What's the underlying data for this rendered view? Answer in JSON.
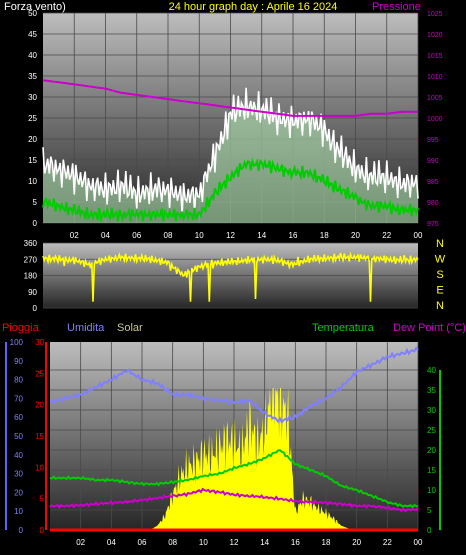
{
  "colors": {
    "background": "#000000",
    "wind_gust": "#ffffff",
    "wind_avg": "#00cc00",
    "wind_fill": "#b8f0b8",
    "pressure": "#cc00cc",
    "direction": "#ffff00",
    "rain": "#ff0000",
    "humidity": "#8080ff",
    "solar": "#ffff00",
    "temperature": "#00cc00",
    "dewpoint": "#cc00cc",
    "left_label": "#ffffff",
    "title": "#ffff00",
    "pressure_label": "#cc00cc",
    "compass": "#ffff00"
  },
  "chart_data": [
    {
      "type": "line",
      "panel": "wind",
      "title": "24 hour graph day : Aprile 16 2024",
      "left_label": "Forza vento)",
      "right_label": "Pressione",
      "x_ticks": [
        "02",
        "04",
        "06",
        "08",
        "10",
        "12",
        "14",
        "16",
        "18",
        "20",
        "22",
        "00"
      ],
      "y_ticks": [
        "0",
        "5",
        "10",
        "15",
        "20",
        "25",
        "30",
        "35",
        "40",
        "45",
        "50"
      ],
      "ylim": [
        0,
        50
      ],
      "y2_ticks": [
        "975",
        "980",
        "985",
        "990",
        "995",
        "1000",
        "1005",
        "1010",
        "1015",
        "1020",
        "1025"
      ],
      "y2lim": [
        975,
        1025
      ],
      "grid": true,
      "series": [
        {
          "role": "gust",
          "x": [
            0,
            1,
            2,
            3,
            4,
            5,
            6,
            7,
            8,
            9,
            10,
            11,
            12,
            13,
            14,
            15,
            16,
            17,
            18,
            19,
            20,
            21,
            22,
            23,
            24
          ],
          "values": [
            14,
            13,
            11,
            9,
            8,
            9,
            7,
            8,
            8,
            6,
            7,
            16,
            26,
            28,
            27,
            25,
            24,
            25,
            22,
            17,
            13,
            11,
            11,
            9,
            10
          ]
        },
        {
          "role": "average",
          "x": [
            0,
            1,
            2,
            3,
            4,
            5,
            6,
            7,
            8,
            9,
            10,
            11,
            12,
            13,
            14,
            15,
            16,
            17,
            18,
            19,
            20,
            21,
            22,
            23,
            24
          ],
          "values": [
            5,
            4,
            3,
            2,
            2,
            2,
            2,
            2,
            2,
            2,
            2,
            7,
            11,
            14,
            14,
            13,
            12,
            12,
            10,
            8,
            6,
            4,
            4,
            3,
            3
          ]
        },
        {
          "role": "pressure",
          "axis": "y2",
          "x": [
            0,
            1,
            2,
            3,
            4,
            5,
            6,
            7,
            8,
            9,
            10,
            11,
            12,
            13,
            14,
            15,
            16,
            17,
            18,
            19,
            20,
            21,
            22,
            23,
            24
          ],
          "values": [
            1009,
            1008.5,
            1008,
            1007.5,
            1007,
            1006,
            1005.5,
            1005,
            1004.5,
            1004,
            1003.5,
            1003,
            1002.5,
            1002,
            1001.5,
            1001,
            1000.5,
            1000.5,
            1000.5,
            1000.5,
            1000.5,
            1001,
            1001,
            1001.5,
            1001.5
          ]
        }
      ]
    },
    {
      "type": "line",
      "panel": "direction",
      "y_ticks": [
        "0",
        "90",
        "180",
        "270",
        "360"
      ],
      "ylim": [
        0,
        360
      ],
      "compass_labels": [
        "N",
        "W",
        "S",
        "E",
        "N"
      ],
      "x_ticks": [
        "02",
        "04",
        "06",
        "08",
        "10",
        "12",
        "14",
        "16",
        "18",
        "20",
        "22",
        "00"
      ],
      "series": [
        {
          "role": "direction",
          "x": [
            0,
            1,
            2,
            3,
            4,
            5,
            6,
            7,
            8,
            9,
            10,
            11,
            12,
            13,
            14,
            15,
            16,
            17,
            18,
            19,
            20,
            21,
            22,
            23,
            24
          ],
          "values": [
            275,
            270,
            265,
            240,
            270,
            280,
            275,
            270,
            250,
            180,
            230,
            250,
            255,
            265,
            270,
            265,
            240,
            270,
            275,
            280,
            280,
            275,
            270,
            265,
            270
          ]
        }
      ]
    },
    {
      "type": "line",
      "panel": "temperature",
      "labels": {
        "rain": "Pioggia",
        "humidity": "Umidita",
        "solar": "Solar",
        "temperature": "Temperatura",
        "dewpoint": "Dew Point (°C)"
      },
      "x_ticks": [
        "02",
        "04",
        "06",
        "08",
        "10",
        "12",
        "14",
        "16",
        "18",
        "20",
        "22",
        "00"
      ],
      "humidity_ticks": [
        "0",
        "10",
        "20",
        "30",
        "40",
        "50",
        "60",
        "70",
        "80",
        "90",
        "100"
      ],
      "humidity_lim": [
        0,
        100
      ],
      "rain_ticks": [
        "0",
        "5",
        "10",
        "15",
        "20",
        "25",
        "30"
      ],
      "rain_lim": [
        0,
        30
      ],
      "temp_ticks": [
        "0",
        "5",
        "10",
        "15",
        "20",
        "25",
        "30",
        "35",
        "40"
      ],
      "temp_lim": [
        0,
        40
      ],
      "grid": true,
      "series": [
        {
          "role": "humidity",
          "axis": "humidity",
          "x": [
            0,
            1,
            2,
            3,
            4,
            5,
            6,
            7,
            8,
            9,
            10,
            11,
            12,
            13,
            14,
            15,
            16,
            17,
            18,
            19,
            20,
            21,
            22,
            23,
            24
          ],
          "values": [
            68,
            70,
            72,
            76,
            80,
            85,
            80,
            78,
            72,
            72,
            70,
            69,
            68,
            69,
            62,
            58,
            60,
            66,
            70,
            76,
            84,
            88,
            92,
            94,
            96
          ]
        },
        {
          "role": "solar",
          "axis": "relative",
          "x": [
            0,
            4,
            6.5,
            7,
            7.5,
            8,
            8.5,
            9,
            9.5,
            10,
            10.5,
            11,
            11.5,
            12,
            12.5,
            13,
            13.5,
            14,
            14.5,
            15,
            15.5,
            16,
            16.5,
            17,
            17.5,
            18,
            18.5,
            19,
            19.5,
            20,
            24
          ],
          "values": [
            0,
            0,
            0,
            3,
            10,
            25,
            38,
            45,
            48,
            54,
            52,
            58,
            64,
            62,
            56,
            76,
            62,
            70,
            100,
            90,
            82,
            12,
            22,
            20,
            15,
            12,
            8,
            3,
            1,
            0,
            0
          ]
        },
        {
          "role": "temperature",
          "axis": "temp",
          "x": [
            0,
            1,
            2,
            3,
            4,
            5,
            6,
            7,
            8,
            9,
            10,
            11,
            12,
            13,
            14,
            15,
            16,
            17,
            18,
            19,
            20,
            21,
            22,
            23,
            24
          ],
          "values": [
            13,
            13,
            13,
            12.5,
            12.5,
            12,
            11.5,
            11.5,
            12,
            12.5,
            13.5,
            14,
            15.5,
            16.5,
            18,
            20,
            16.5,
            15,
            13.5,
            11,
            10,
            8.5,
            7,
            6,
            6
          ]
        },
        {
          "role": "dewpoint",
          "axis": "temp",
          "x": [
            0,
            1,
            2,
            3,
            4,
            5,
            6,
            7,
            8,
            9,
            10,
            11,
            12,
            13,
            14,
            15,
            16,
            17,
            18,
            19,
            20,
            21,
            22,
            23,
            24
          ],
          "values": [
            6,
            6,
            6.2,
            6.5,
            6.8,
            7,
            7.5,
            8,
            8.5,
            9,
            10,
            9.5,
            8.8,
            8.5,
            8.2,
            7.8,
            7.2,
            7,
            6.8,
            6.5,
            6,
            6,
            5.5,
            5,
            5.2
          ]
        },
        {
          "role": "rain",
          "axis": "rain",
          "x": [
            0,
            24
          ],
          "values": [
            0,
            0
          ]
        }
      ]
    }
  ]
}
